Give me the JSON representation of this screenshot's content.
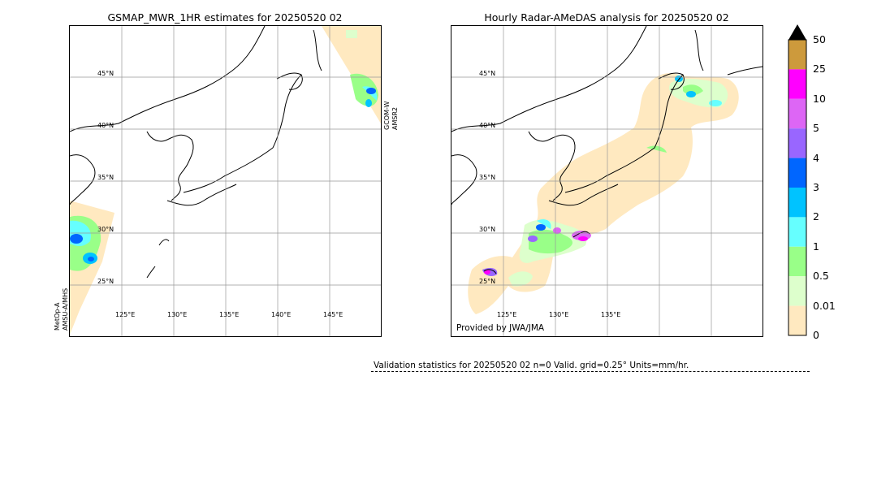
{
  "left_panel": {
    "title": "GSMAP_MWR_1HR estimates for 20250520 02",
    "sat_labels": [
      {
        "text": "GCOM-W"
      },
      {
        "text": "AMSR2"
      },
      {
        "text": "MetOp-A"
      },
      {
        "text": "AMSU-A/MHS"
      }
    ]
  },
  "right_panel": {
    "title": "Hourly Radar-AMeDAS analysis for 20250520 02",
    "credit": "Provided by JWA/JMA"
  },
  "lat_ticks": [
    "45°N",
    "40°N",
    "35°N",
    "30°N",
    "25°N"
  ],
  "lon_ticks_left": [
    "125°E",
    "130°E",
    "135°E",
    "140°E",
    "145°E"
  ],
  "lon_ticks_right": [
    "125°E",
    "130°E",
    "135°E"
  ],
  "stats_text": "Validation statistics for 20250520 02  n=0 Valid. grid=0.25° Units=mm/hr.",
  "colorbar": {
    "labels": [
      "50",
      "25",
      "10",
      "5",
      "4",
      "3",
      "2",
      "1",
      "0.5",
      "0.01",
      "0"
    ],
    "colors": [
      "#cd9a3c",
      "#ff00ff",
      "#dd66f5",
      "#9966ff",
      "#0066ff",
      "#00c3ff",
      "#66ffff",
      "#99ff88",
      "#ddffcc",
      "#ffe9c0"
    ]
  },
  "chart_data": [
    {
      "type": "heatmap",
      "title": "GSMAP_MWR_1HR estimates for 20250520 02",
      "xlim": [
        120,
        150
      ],
      "ylim": [
        20,
        50
      ],
      "x_ticks": [
        125,
        130,
        135,
        140,
        145
      ],
      "y_ticks": [
        25,
        30,
        35,
        40,
        45
      ],
      "units": "mm/hr",
      "levels": [
        0,
        0.01,
        0.5,
        1,
        2,
        3,
        4,
        5,
        10,
        25,
        50
      ]
    },
    {
      "type": "heatmap",
      "title": "Hourly Radar-AMeDAS analysis for 20250520 02",
      "xlim": [
        120,
        150
      ],
      "ylim": [
        20,
        50
      ],
      "x_ticks": [
        125,
        130,
        135
      ],
      "y_ticks": [
        25,
        30,
        35,
        40,
        45
      ],
      "units": "mm/hr",
      "levels": [
        0,
        0.01,
        0.5,
        1,
        2,
        3,
        4,
        5,
        10,
        25,
        50
      ]
    }
  ]
}
